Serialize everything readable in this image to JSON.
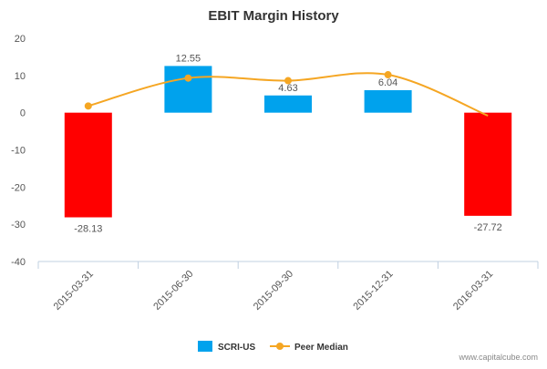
{
  "chart_data": {
    "type": "bar",
    "title": "EBIT Margin History",
    "categories": [
      "2015-03-31",
      "2015-06-30",
      "2015-09-30",
      "2015-12-31",
      "2016-03-31"
    ],
    "ylim": [
      -40,
      20
    ],
    "yticks": [
      -40,
      -30,
      -20,
      -10,
      0,
      10,
      20
    ],
    "series": [
      {
        "name": "SCRI-US",
        "type": "bar",
        "values": [
          -28.13,
          12.55,
          4.63,
          6.04,
          -27.72
        ],
        "color": "#00a2ed",
        "negative_color": "#ff0000",
        "data_labels": [
          "-28.13",
          "12.55",
          "4.63",
          "6.04",
          "-27.72"
        ]
      },
      {
        "name": "Peer Median",
        "type": "line",
        "values": [
          1.8,
          9.3,
          8.6,
          10.2,
          -0.8
        ],
        "color": "#f5a623",
        "markers_shown": [
          true,
          true,
          true,
          true,
          false
        ]
      }
    ],
    "legend_position": "bottom-center",
    "grid": false
  },
  "watermark": "www.capitalcube.com"
}
